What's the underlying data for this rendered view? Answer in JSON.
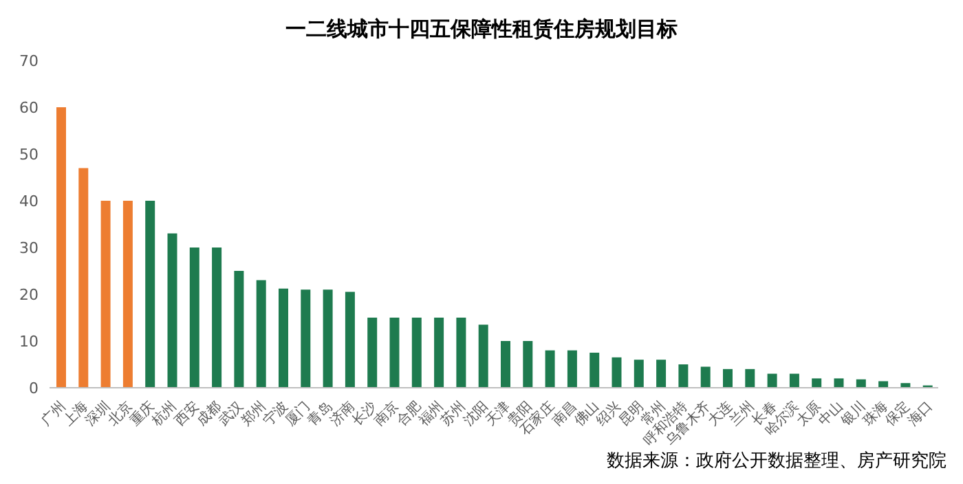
{
  "chart_data": {
    "type": "bar",
    "title": "一二线城市十四五保障性租赁住房规划目标",
    "categories": [
      "广州",
      "上海",
      "深圳",
      "北京",
      "重庆",
      "杭州",
      "西安",
      "成都",
      "武汉",
      "郑州",
      "宁波",
      "厦门",
      "青岛",
      "济南",
      "长沙",
      "南京",
      "合肥",
      "福州",
      "苏州",
      "沈阳",
      "天津",
      "贵阳",
      "石家庄",
      "南昌",
      "佛山",
      "绍兴",
      "昆明",
      "常州",
      "呼和浩特",
      "乌鲁木齐",
      "大连",
      "兰州",
      "长春",
      "哈尔滨",
      "太原",
      "中山",
      "银川",
      "珠海",
      "保定",
      "海口"
    ],
    "values": [
      60,
      47,
      40,
      40,
      40,
      33,
      30,
      30,
      25,
      23,
      21.2,
      21,
      21,
      20.5,
      15,
      15,
      15,
      15,
      15,
      13.5,
      10,
      10,
      8,
      8,
      7.5,
      6.5,
      6,
      6,
      5,
      4.5,
      4,
      4,
      3,
      3,
      2,
      2,
      1.8,
      1.4,
      1,
      0.5
    ],
    "colors": [
      "#ed7d31",
      "#ed7d31",
      "#ed7d31",
      "#ed7d31",
      "#1e7b4f",
      "#1e7b4f",
      "#1e7b4f",
      "#1e7b4f",
      "#1e7b4f",
      "#1e7b4f",
      "#1e7b4f",
      "#1e7b4f",
      "#1e7b4f",
      "#1e7b4f",
      "#1e7b4f",
      "#1e7b4f",
      "#1e7b4f",
      "#1e7b4f",
      "#1e7b4f",
      "#1e7b4f",
      "#1e7b4f",
      "#1e7b4f",
      "#1e7b4f",
      "#1e7b4f",
      "#1e7b4f",
      "#1e7b4f",
      "#1e7b4f",
      "#1e7b4f",
      "#1e7b4f",
      "#1e7b4f",
      "#1e7b4f",
      "#1e7b4f",
      "#1e7b4f",
      "#1e7b4f",
      "#1e7b4f",
      "#1e7b4f",
      "#1e7b4f",
      "#1e7b4f",
      "#1e7b4f",
      "#1e7b4f"
    ],
    "ylim": [
      0,
      70
    ],
    "yticks": [
      0,
      10,
      20,
      30,
      40,
      50,
      60,
      70
    ],
    "grid": false,
    "legend": false,
    "annotations": [
      "数据来源：政府公开数据整理、房产研究院"
    ]
  }
}
